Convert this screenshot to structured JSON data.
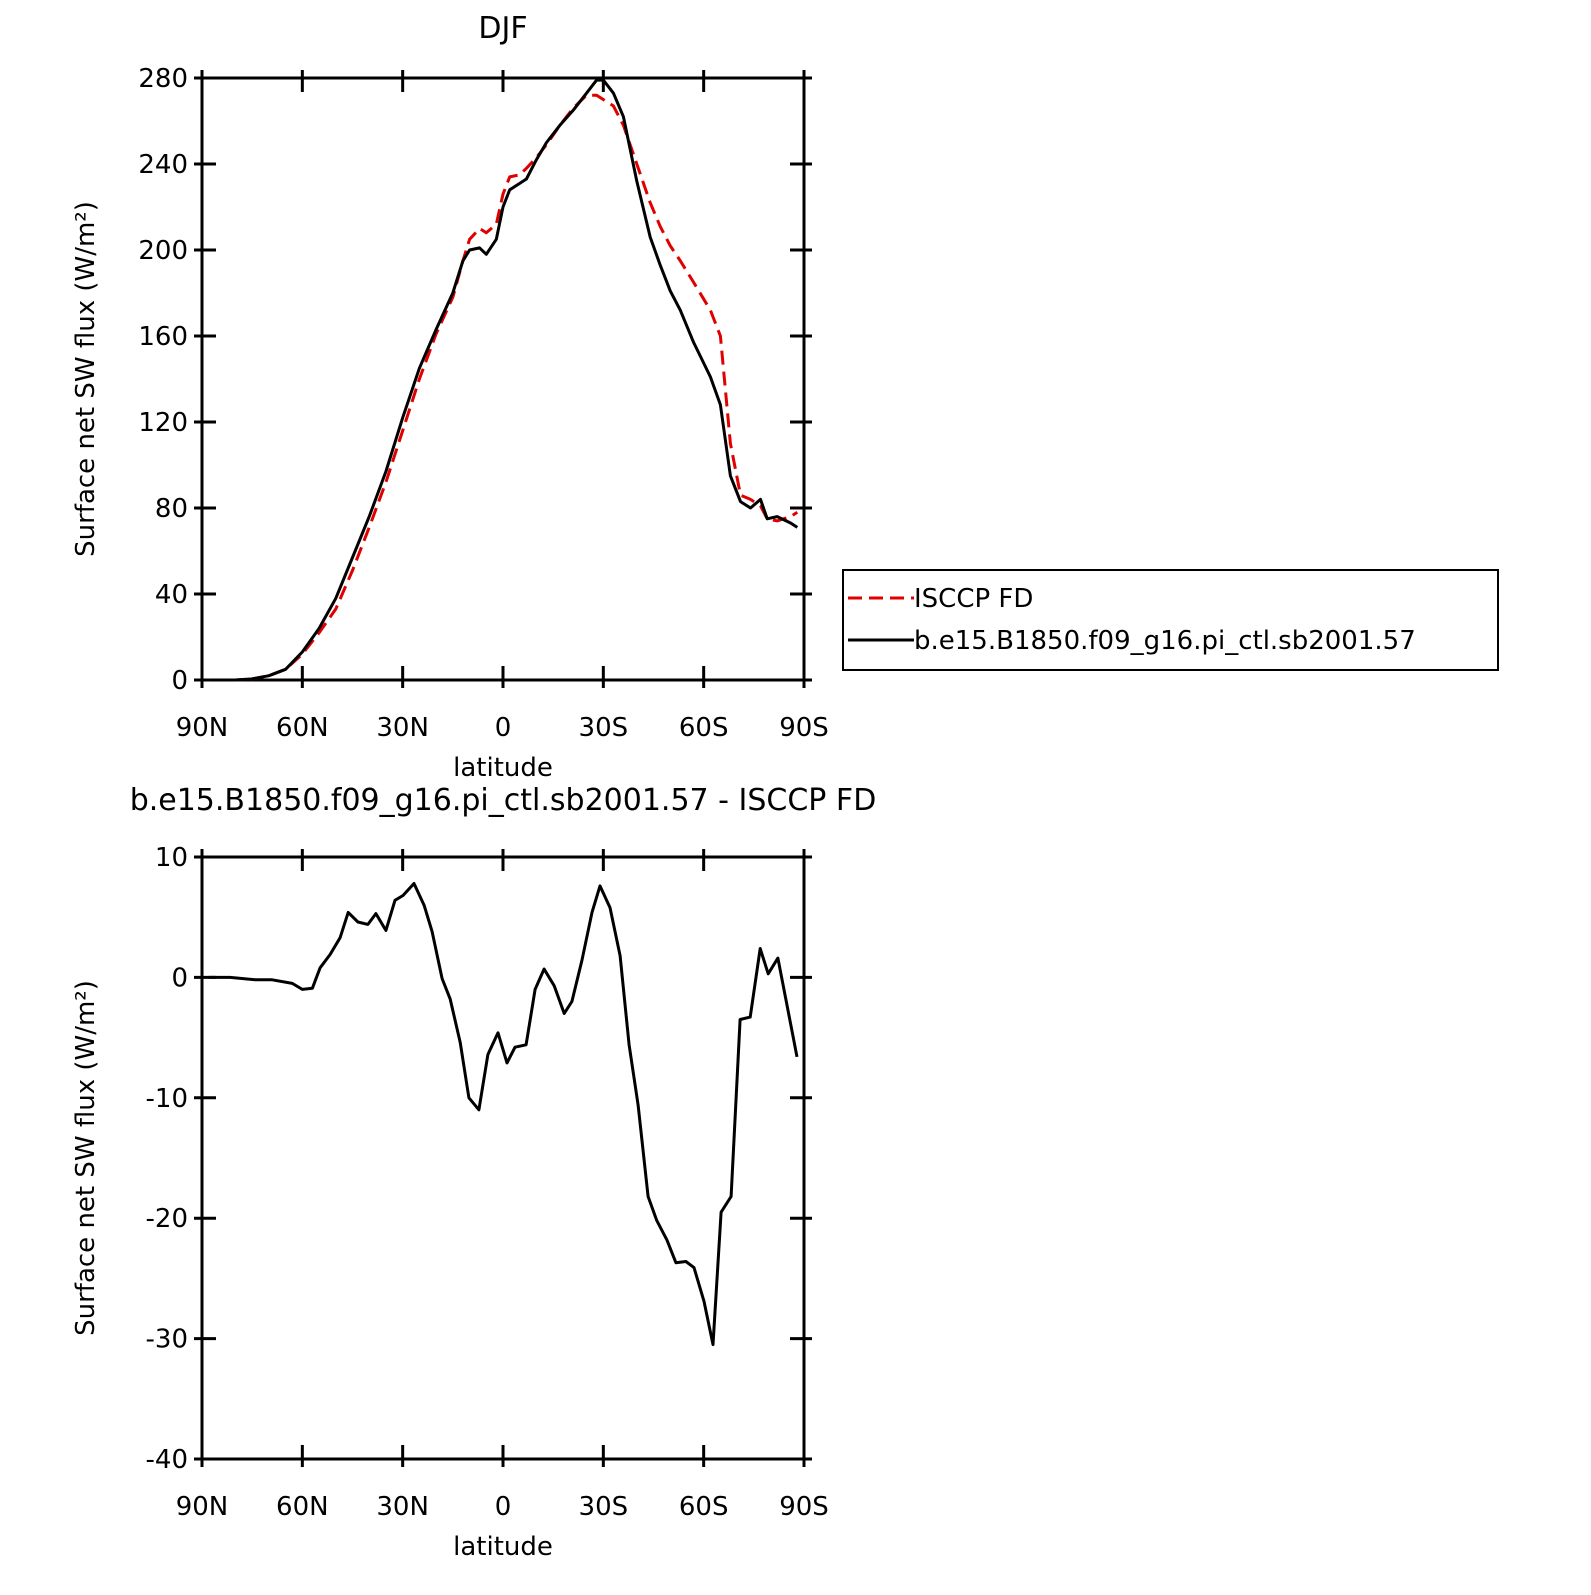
{
  "chart_data": [
    {
      "type": "line",
      "title": "DJF",
      "x_label": "latitude",
      "y_label": "Surface net SW flux (W/m²)",
      "x": [
        88,
        80,
        75,
        70,
        65,
        60,
        55,
        50,
        45,
        40,
        35,
        30,
        25,
        20,
        15,
        12,
        10,
        7,
        5,
        2,
        0,
        -2,
        -5,
        -7,
        -10,
        -13,
        -17,
        -21,
        -25,
        -28,
        -30,
        -33,
        -36,
        -40,
        -44,
        -47,
        -50,
        -53,
        -57,
        -62,
        -65,
        -68,
        -71,
        -74,
        -77,
        -79,
        -82,
        -86,
        -88
      ],
      "series": [
        {
          "name": "ISCCP FD",
          "color": "#e00000",
          "linestyle": "dashed",
          "values": [
            0,
            0,
            0.5,
            2,
            5,
            12,
            22,
            33,
            51,
            71,
            92,
            116,
            140,
            161,
            178,
            195,
            205,
            210,
            208,
            212,
            226,
            234,
            235,
            238,
            243,
            249,
            258,
            266,
            272,
            272,
            270,
            267,
            258,
            240,
            222,
            211,
            202,
            195,
            185,
            172,
            160,
            110,
            86,
            84,
            81,
            75,
            74,
            76,
            78
          ]
        },
        {
          "name": "b.e15.B1850.f09_g16.pi_ctl.sb2001.57",
          "color": "#000000",
          "linestyle": "solid",
          "values": [
            0,
            0,
            0.5,
            2,
            5,
            13,
            24,
            38,
            57,
            76,
            97,
            122,
            145,
            163,
            180,
            195,
            200,
            201,
            198,
            205,
            220,
            228,
            231,
            233,
            242,
            250,
            258,
            265,
            273,
            279,
            279,
            273,
            262,
            232,
            206,
            193,
            181,
            172,
            157,
            141,
            128,
            95,
            83,
            80,
            84,
            75,
            76,
            73,
            71
          ]
        }
      ],
      "xlim": [
        90,
        -90
      ],
      "xticks": [
        {
          "value": 90,
          "label": "90N"
        },
        {
          "value": 60,
          "label": "60N"
        },
        {
          "value": 30,
          "label": "30N"
        },
        0,
        {
          "value": -30,
          "label": "30S"
        },
        {
          "value": -60,
          "label": "60S"
        },
        {
          "value": -90,
          "label": "90S"
        }
      ],
      "ylim": [
        0,
        280
      ],
      "yticks": [
        0,
        40,
        80,
        120,
        160,
        200,
        240,
        280
      ],
      "legend": "right"
    },
    {
      "type": "line",
      "title": "b.e15.B1850.f09_g16.pi_ctl.sb2001.57 - ISCCP FD",
      "x_label": "latitude",
      "y_label": "Surface net SW flux (W/m²)",
      "x": [
        88,
        81.6,
        74,
        69,
        63,
        60,
        57,
        54.7,
        51.7,
        48.7,
        46.3,
        43.4,
        40.4,
        38,
        35,
        32.3,
        29.9,
        26.6,
        23.6,
        21.2,
        18.2,
        15.8,
        12.8,
        10.2,
        7.2,
        4.5,
        1.5,
        -1.2,
        -3.6,
        -6.9,
        -9.6,
        -12.3,
        -15.3,
        -18.3,
        -20.6,
        -23.6,
        -26.6,
        -29,
        -32,
        -35,
        -37.7,
        -40.4,
        -43.4,
        -46,
        -49,
        -51.7,
        -54.7,
        -57.1,
        -60.1,
        -62.8,
        -65.2,
        -68.2,
        -70.9,
        -73.9,
        -76.9,
        -79.3,
        -82.2,
        -87.9
      ],
      "series": [
        {
          "color": "#000000",
          "linestyle": "solid",
          "values": [
            0,
            0,
            -0.2,
            -0.2,
            -0.5,
            -1.0,
            -0.9,
            0.8,
            1.9,
            3.3,
            5.4,
            4.6,
            4.4,
            5.3,
            3.9,
            6.4,
            6.8,
            7.8,
            6.0,
            3.8,
            -0.1,
            -1.8,
            -5.4,
            -10.0,
            -11.0,
            -6.4,
            -4.6,
            -7.1,
            -5.8,
            -5.6,
            -1.0,
            0.7,
            -0.7,
            -3.0,
            -2.0,
            1.4,
            5.4,
            7.6,
            5.8,
            1.8,
            -5.6,
            -10.6,
            -18.2,
            -20.2,
            -21.8,
            -23.7,
            -23.6,
            -24.1,
            -26.9,
            -30.5,
            -19.5,
            -18.2,
            -3.5,
            -3.3,
            2.4,
            0.3,
            1.6,
            -6.6
          ]
        }
      ],
      "xlim": [
        90,
        -90
      ],
      "xticks": [
        {
          "value": 90,
          "label": "90N"
        },
        {
          "value": 60,
          "label": "60N"
        },
        {
          "value": 30,
          "label": "30N"
        },
        0,
        {
          "value": -30,
          "label": "30S"
        },
        {
          "value": -60,
          "label": "60S"
        },
        {
          "value": -90,
          "label": "90S"
        }
      ],
      "ylim": [
        -40,
        10
      ],
      "yticks": [
        -40,
        -30,
        -20,
        -10,
        0,
        10
      ]
    }
  ]
}
